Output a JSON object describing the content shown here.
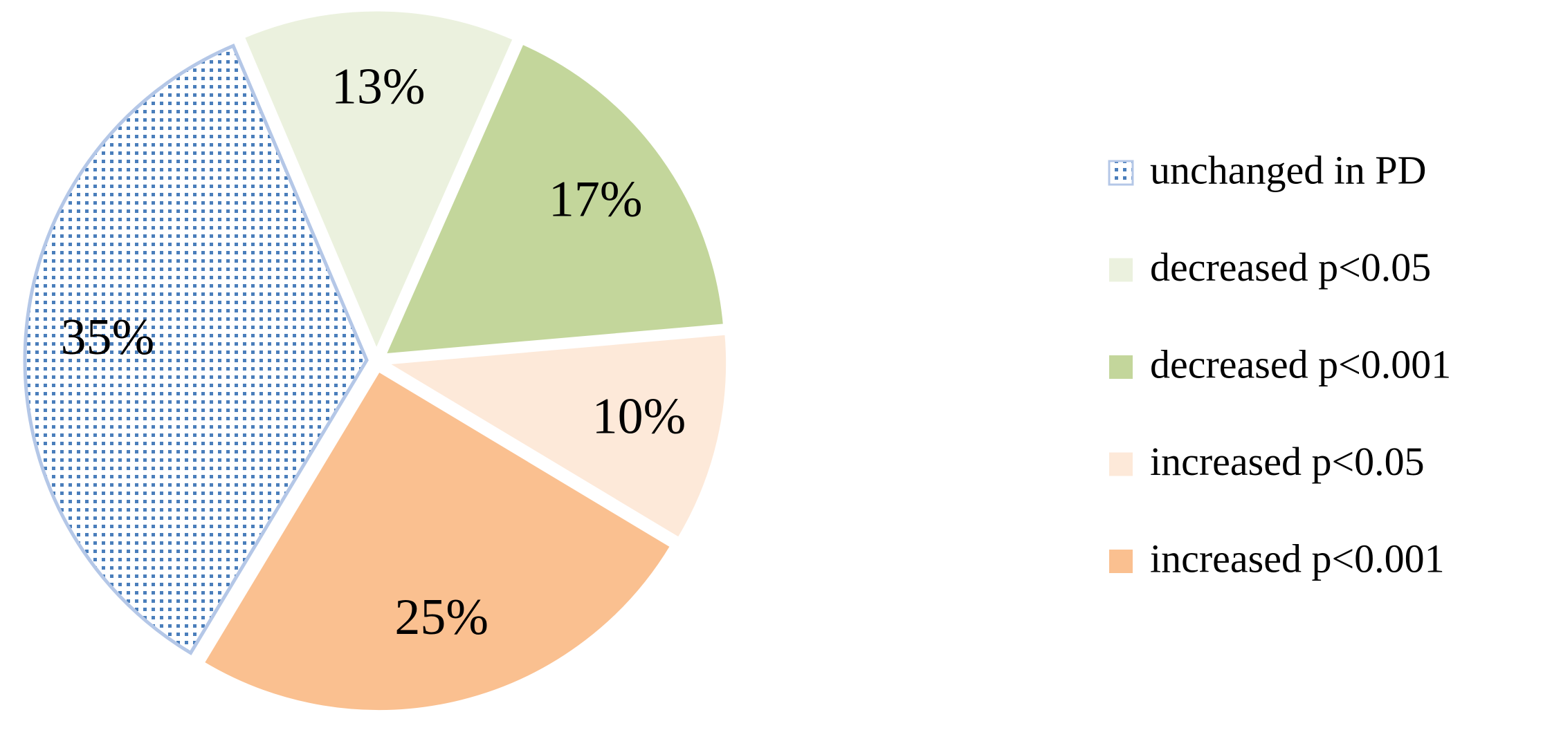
{
  "chart_data": {
    "type": "pie",
    "categories": [
      "unchanged in PD",
      "decreased p<0.05",
      "decreased p<0.001",
      "increased p<0.05",
      "increased p<0.001"
    ],
    "values": [
      35,
      13,
      17,
      10,
      25
    ],
    "value_labels": [
      "35%",
      "13%",
      "17%",
      "10%",
      "25%"
    ],
    "colors": [
      "#4a7ebb",
      "#ebf1de",
      "#c3d69b",
      "#fde9d9",
      "#fac090"
    ],
    "patterns": [
      "dots",
      null,
      null,
      null,
      null
    ],
    "legend": "right"
  }
}
